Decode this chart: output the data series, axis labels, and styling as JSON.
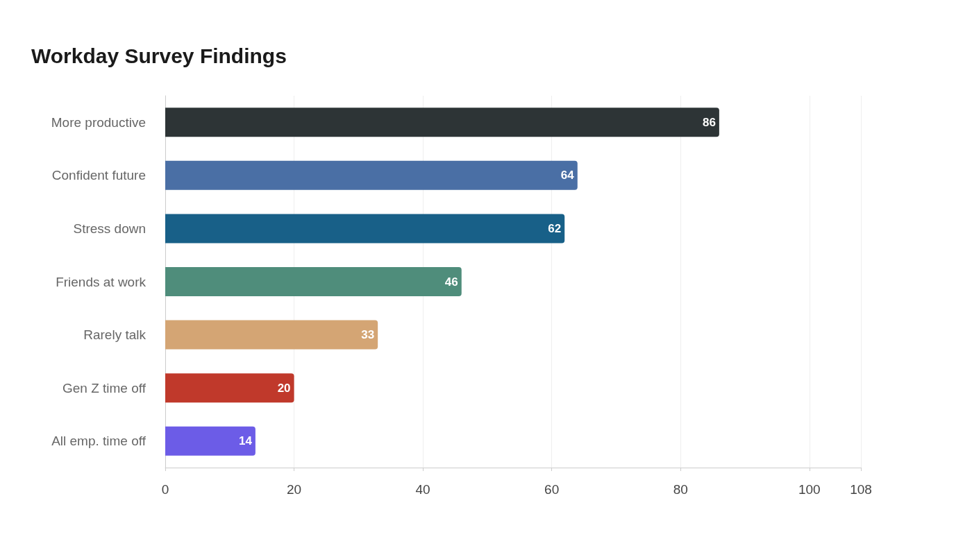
{
  "chart_data": {
    "type": "bar",
    "orientation": "horizontal",
    "title": "Workday Survey Findings",
    "categories": [
      "More productive",
      "Confident future",
      "Stress down",
      "Friends at work",
      "Rarely talk",
      "Gen Z time off",
      "All emp. time off"
    ],
    "values": [
      86,
      64,
      62,
      46,
      33,
      20,
      14
    ],
    "colors": [
      "#2d3436",
      "#4a6fa5",
      "#186088",
      "#4f8d7b",
      "#d4a574",
      "#c0392b",
      "#6c5ce7"
    ],
    "xlim": [
      0,
      108
    ],
    "xticks": [
      0,
      20,
      40,
      60,
      80,
      100,
      108
    ],
    "grid": "x",
    "data_labels": true
  }
}
